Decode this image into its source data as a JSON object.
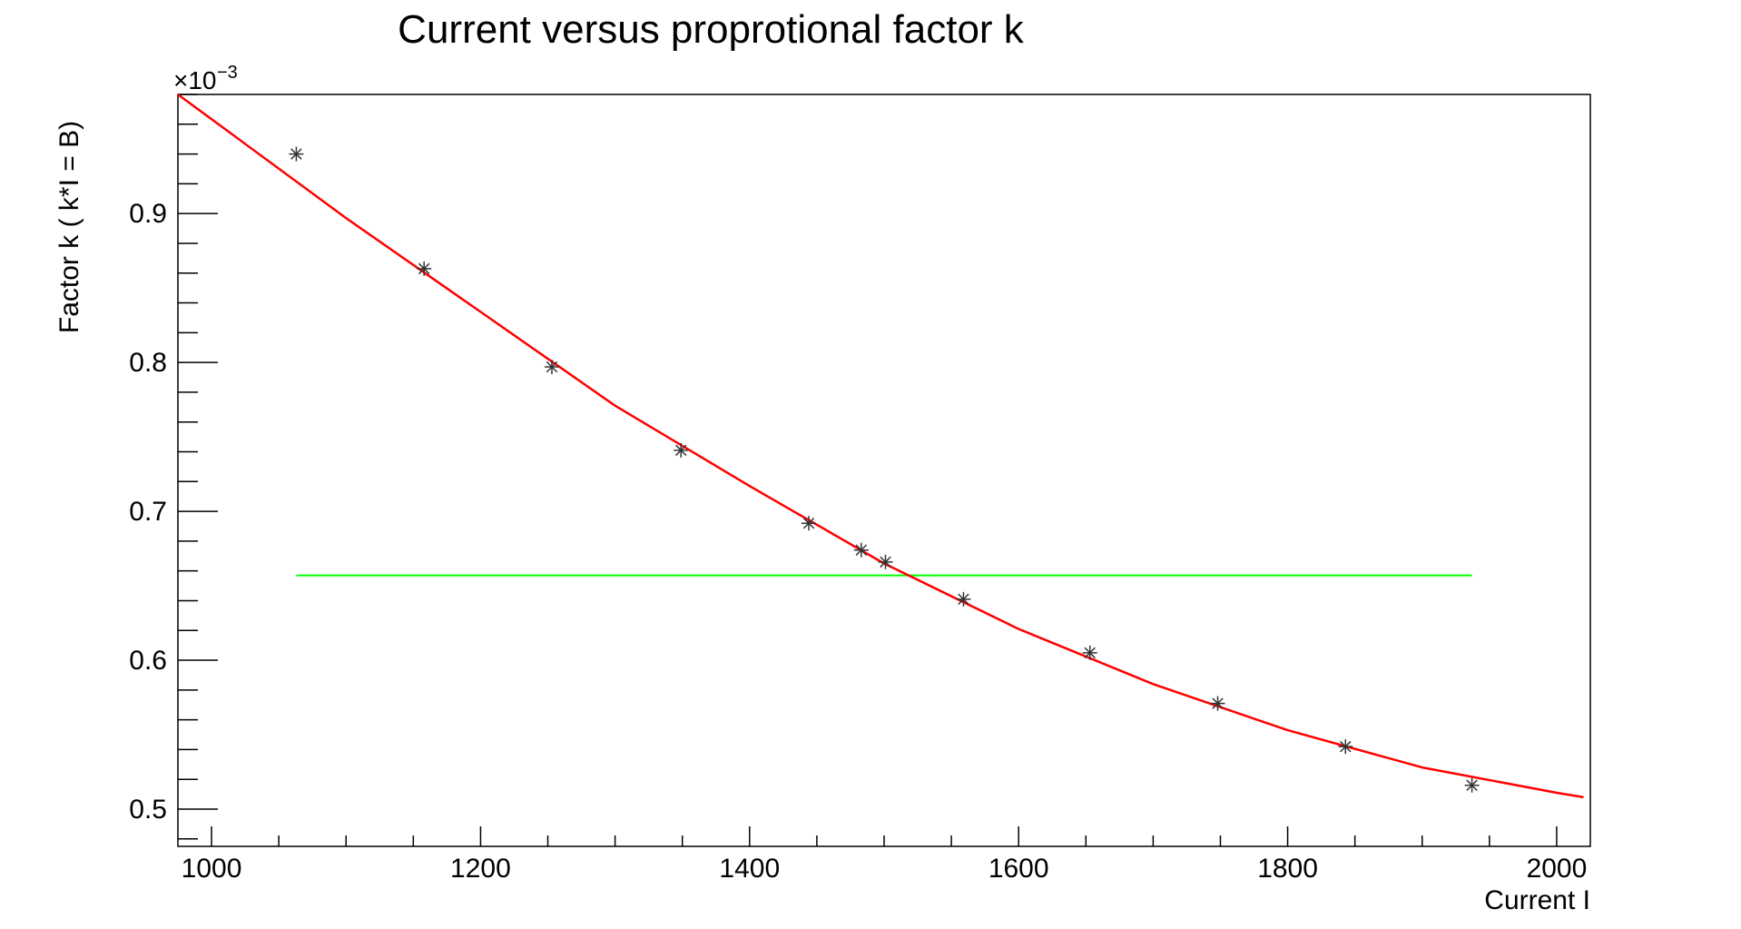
{
  "chart_data": {
    "type": "scatter",
    "title": "Current versus proprotional factor k",
    "xlabel": "Current I",
    "ylabel": "Factor k ( k*I = B)",
    "y_multiplier_base": "×10",
    "y_multiplier_exp": "−3",
    "xlim": [
      975,
      2025
    ],
    "ylim": [
      0.475,
      0.98
    ],
    "x_ticks": [
      1000,
      1200,
      1400,
      1600,
      1800,
      2000
    ],
    "x_tick_labels": [
      "1000",
      "1200",
      "1400",
      "1600",
      "1800",
      "2000"
    ],
    "y_ticks": [
      0.5,
      0.6,
      0.7,
      0.8,
      0.9
    ],
    "y_tick_labels": [
      "0.5",
      "0.6",
      "0.7",
      "0.8",
      "0.9"
    ],
    "grid": false,
    "series": [
      {
        "marker": "asterisk",
        "color": "#000000",
        "x": [
          1063,
          1158,
          1253,
          1349,
          1444,
          1483,
          1501,
          1559,
          1653,
          1748,
          1843,
          1937
        ],
        "y": [
          0.94,
          0.863,
          0.797,
          0.741,
          0.692,
          0.674,
          0.666,
          0.641,
          0.605,
          0.571,
          0.542,
          0.516
        ]
      },
      {
        "type": "line",
        "color": "#ff0000",
        "x": [
          975,
          1100,
          1200,
          1300,
          1400,
          1500,
          1600,
          1700,
          1800,
          1900,
          2000,
          2020
        ],
        "y": [
          0.98,
          0.897,
          0.834,
          0.771,
          0.717,
          0.665,
          0.621,
          0.584,
          0.553,
          0.528,
          0.511,
          0.508
        ]
      },
      {
        "type": "line",
        "color": "#00ff00",
        "x": [
          1063,
          1937
        ],
        "y": [
          0.657,
          0.657
        ]
      }
    ]
  }
}
